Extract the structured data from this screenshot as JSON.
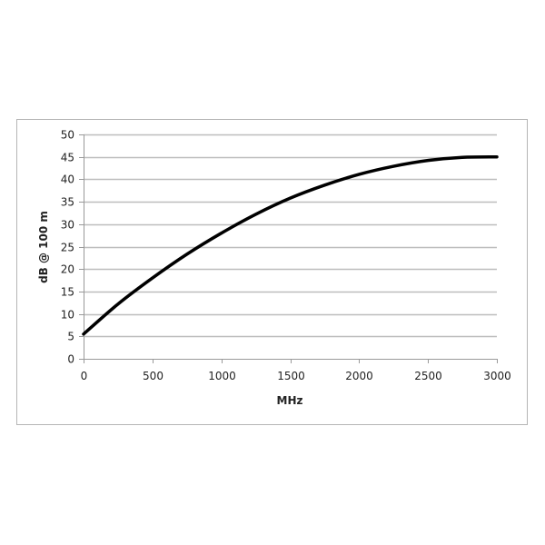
{
  "chart_data": {
    "type": "line",
    "title": "",
    "xlabel": "MHz",
    "ylabel": "dB @ 100 m",
    "xlim": [
      0,
      3000
    ],
    "ylim": [
      0,
      50
    ],
    "xticks": [
      0,
      500,
      1000,
      1500,
      2000,
      2500,
      3000
    ],
    "yticks": [
      0,
      5,
      10,
      15,
      20,
      25,
      30,
      35,
      40,
      45,
      50
    ],
    "grid": "horizontal",
    "legend": "none",
    "line_color": "#000000",
    "series": [
      {
        "x": [
          0,
          250,
          500,
          750,
          1000,
          1250,
          1500,
          1750,
          2000,
          2250,
          2500,
          2750,
          3000
        ],
        "y": [
          5.5,
          12.2,
          18.0,
          23.3,
          28.0,
          32.2,
          35.8,
          38.7,
          41.1,
          42.9,
          44.2,
          44.9,
          45.0
        ]
      }
    ]
  }
}
